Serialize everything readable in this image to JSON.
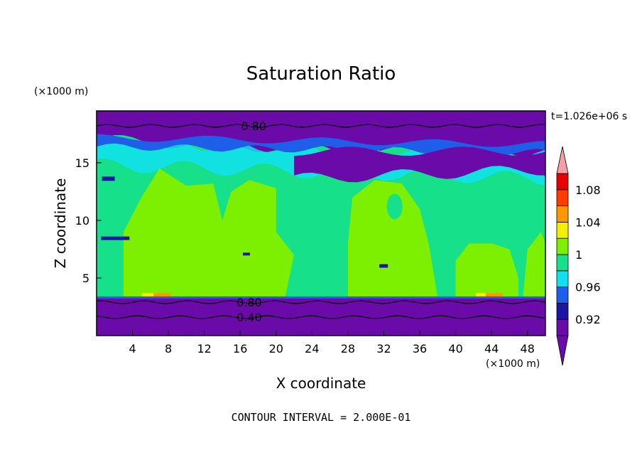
{
  "chart_data": {
    "type": "heatmap",
    "title": "Saturation Ratio",
    "xlabel": "X coordinate",
    "ylabel": "Z coordinate",
    "x_unit": "(×1000 m)",
    "y_unit": "(×1000 m)",
    "time_label": "t=1.026e+06 s",
    "footer": "CONTOUR INTERVAL = 2.000E-01",
    "xlim": [
      0,
      50
    ],
    "ylim": [
      0,
      19.5
    ],
    "x_ticks": [
      4,
      8,
      12,
      16,
      20,
      24,
      28,
      32,
      36,
      40,
      44,
      48
    ],
    "y_ticks": [
      5,
      10,
      15
    ],
    "contour_labels": [
      {
        "text": "0.80",
        "x": 17.5,
        "y": 18.2
      },
      {
        "text": "0.80",
        "x": 17.0,
        "y": 2.9
      },
      {
        "text": "0.40",
        "x": 17.0,
        "y": 1.6
      }
    ],
    "colorbar": {
      "levels": [
        0.9,
        0.92,
        0.94,
        0.96,
        0.98,
        1.0,
        1.02,
        1.04,
        1.06,
        1.08,
        1.1
      ],
      "tick_labels": [
        "0.92",
        "0.96",
        "1",
        "1.04",
        "1.08"
      ],
      "colors": [
        "#6a0aa8",
        "#1c16a8",
        "#1e5ee8",
        "#10e0f0",
        "#16e08a",
        "#7cf000",
        "#f4ee00",
        "#ff9800",
        "#ff3c00",
        "#e80000"
      ],
      "under_color": "#6a0aa8",
      "over_color": "#f5a0a8"
    }
  }
}
